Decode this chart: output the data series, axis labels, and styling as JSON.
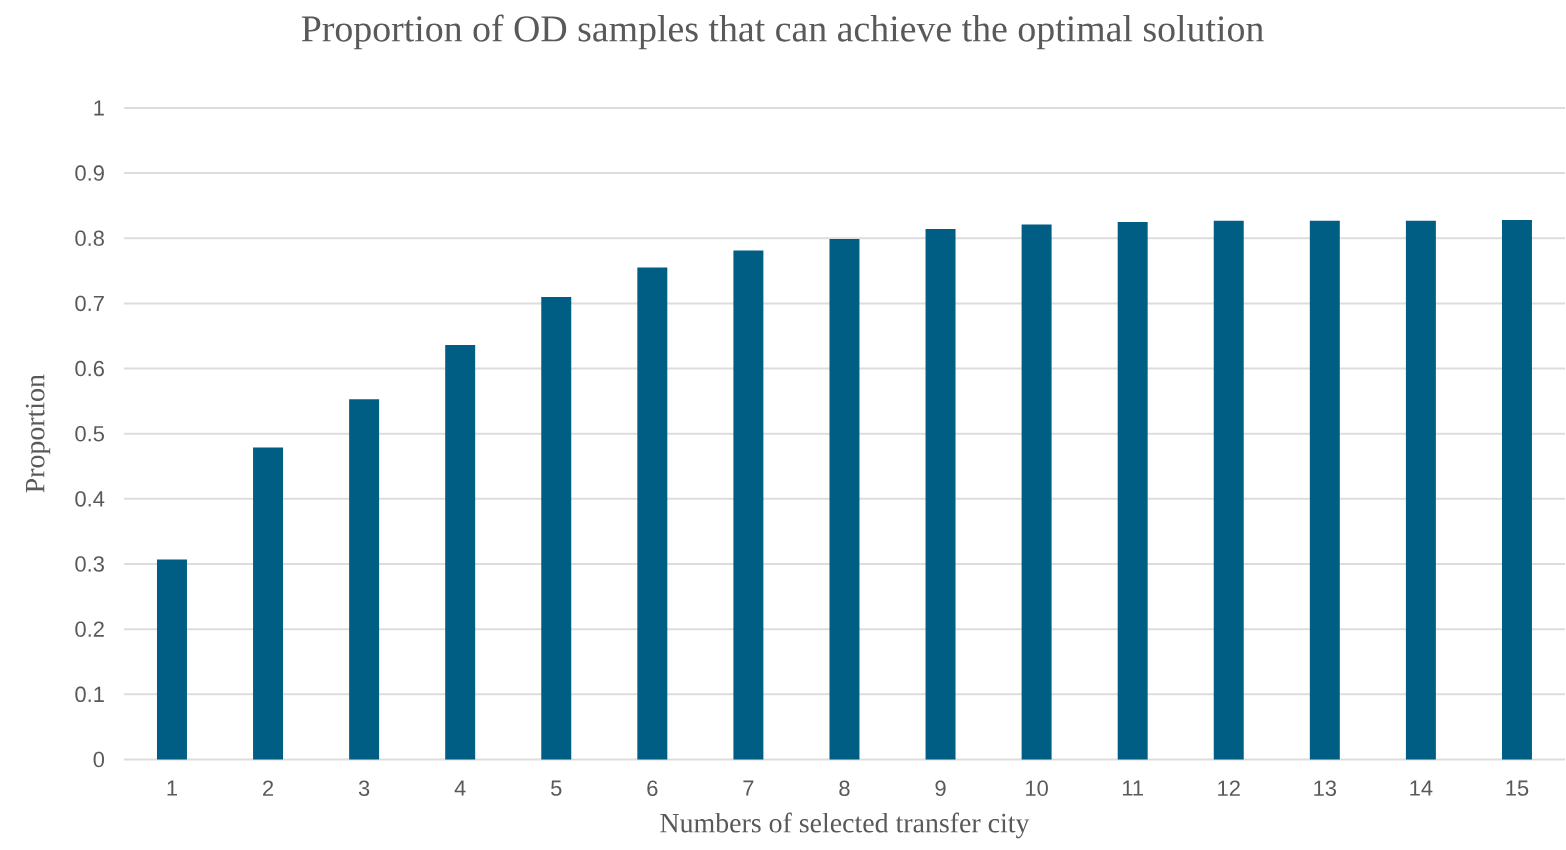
{
  "chart_data": {
    "type": "bar",
    "title": "Proportion of OD samples that can achieve the optimal solution",
    "xlabel": "Numbers of selected transfer city",
    "ylabel": "Proportion",
    "categories": [
      "1",
      "2",
      "3",
      "4",
      "5",
      "6",
      "7",
      "8",
      "9",
      "10",
      "11",
      "12",
      "13",
      "14",
      "15"
    ],
    "values": [
      0.307,
      0.479,
      0.553,
      0.636,
      0.71,
      0.755,
      0.781,
      0.799,
      0.814,
      0.821,
      0.825,
      0.827,
      0.827,
      0.827,
      0.828
    ],
    "color": "#005e85",
    "ylim": [
      0,
      1
    ],
    "yticks": [
      0,
      0.1,
      0.2,
      0.3,
      0.4,
      0.5,
      0.6,
      0.7,
      0.8,
      0.9,
      1
    ],
    "grid": "y"
  }
}
